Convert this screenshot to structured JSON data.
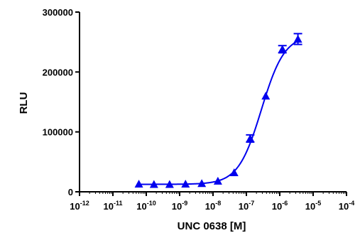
{
  "chart_data": {
    "type": "scatter",
    "title": "",
    "xlabel": "UNC 0638 [M]",
    "ylabel": "RLU",
    "x_scale": "log",
    "xlim": [
      1e-12,
      0.0001
    ],
    "ylim": [
      0,
      300000
    ],
    "x_ticks": [
      {
        "value": -12,
        "base": "10",
        "exp": "-12"
      },
      {
        "value": -11,
        "base": "10",
        "exp": "-11"
      },
      {
        "value": -10,
        "base": "10",
        "exp": "-10"
      },
      {
        "value": -9,
        "base": "10",
        "exp": "-9"
      },
      {
        "value": -8,
        "base": "10",
        "exp": "-8"
      },
      {
        "value": -7,
        "base": "10",
        "exp": "-7"
      },
      {
        "value": -6,
        "base": "10",
        "exp": "-6"
      },
      {
        "value": -5,
        "base": "10",
        "exp": "-5"
      },
      {
        "value": -4,
        "base": "10",
        "exp": "-4"
      }
    ],
    "y_ticks": [
      {
        "value": 0,
        "label": "0"
      },
      {
        "value": 100000,
        "label": "100000"
      },
      {
        "value": 200000,
        "label": "200000"
      },
      {
        "value": 300000,
        "label": "300000"
      }
    ],
    "grid": false,
    "legend": "none",
    "series": [
      {
        "marker": "triangle",
        "color": "#0000ee",
        "points": [
          {
            "x": 6e-11,
            "y": 13000,
            "err": 0
          },
          {
            "x": 1.7e-10,
            "y": 12500,
            "err": 0
          },
          {
            "x": 5e-10,
            "y": 12500,
            "err": 0
          },
          {
            "x": 1.5e-09,
            "y": 13000,
            "err": 0
          },
          {
            "x": 4.6e-09,
            "y": 14000,
            "err": 0
          },
          {
            "x": 1.4e-08,
            "y": 18000,
            "err": 0
          },
          {
            "x": 4.3e-08,
            "y": 32000,
            "err": 0
          },
          {
            "x": 1.3e-07,
            "y": 89000,
            "err": 6000
          },
          {
            "x": 3.8e-07,
            "y": 160000,
            "err": 0
          },
          {
            "x": 1.2e-06,
            "y": 238000,
            "err": 6000
          },
          {
            "x": 3.5e-06,
            "y": 255000,
            "err": 9000
          }
        ]
      }
    ],
    "fit": {
      "type": "sigmoid",
      "color": "#0000ee",
      "bottom": 12500,
      "top": 262000,
      "log_ec50": -6.55,
      "hill": 1.25,
      "x_from": 6e-11,
      "x_to": 3.5e-06
    }
  }
}
